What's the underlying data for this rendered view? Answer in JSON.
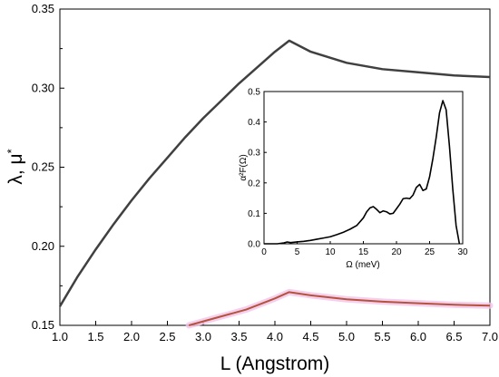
{
  "chart_data": [
    {
      "type": "line",
      "xlabel": "L  (Angstrom)",
      "ylabel_main": "λ, μ",
      "ylabel_sup": "*",
      "xlim": [
        1.0,
        7.0
      ],
      "ylim": [
        0.15,
        0.35
      ],
      "xticks": [
        "1.0",
        "1.5",
        "2.0",
        "2.5",
        "3.0",
        "3.5",
        "4.0",
        "4.5",
        "5.0",
        "5.5",
        "6.0",
        "6.5",
        "7.0"
      ],
      "yticks": [
        "0.15",
        "0.20",
        "0.25",
        "0.30",
        "0.35"
      ],
      "grid": false,
      "colors": {
        "lambda": "#404040",
        "mu": "#b5533c",
        "mu_glow": "#f2c4ea"
      },
      "series": [
        {
          "x": [
            1.0,
            1.25,
            1.5,
            1.75,
            2.0,
            2.25,
            2.5,
            2.75,
            3.0,
            3.25,
            3.5,
            3.75,
            4.0,
            4.2,
            4.5,
            5.0,
            5.5,
            6.0,
            6.5,
            7.0
          ],
          "y": [
            0.162,
            0.181,
            0.198,
            0.214,
            0.229,
            0.243,
            0.256,
            0.269,
            0.281,
            0.292,
            0.303,
            0.313,
            0.323,
            0.33,
            0.323,
            0.316,
            0.312,
            0.31,
            0.308,
            0.307
          ]
        },
        {
          "x": [
            2.8,
            3.2,
            3.6,
            4.0,
            4.2,
            4.5,
            5.0,
            5.5,
            6.0,
            6.5,
            7.0
          ],
          "y": [
            0.15,
            0.155,
            0.16,
            0.167,
            0.171,
            0.169,
            0.1665,
            0.165,
            0.164,
            0.163,
            0.1625
          ]
        }
      ]
    },
    {
      "type": "line",
      "xlabel": "Ω  (meV)",
      "ylabel": "α²F(Ω)",
      "xlim": [
        0,
        30
      ],
      "ylim": [
        0,
        0.5
      ],
      "xticks": [
        "0",
        "5",
        "10",
        "15",
        "20",
        "25",
        "30"
      ],
      "yticks": [
        "0.0",
        "0.1",
        "0.2",
        "0.3",
        "0.4",
        "0.5"
      ],
      "series": [
        {
          "x": [
            0,
            2,
            3,
            3.5,
            4,
            5,
            6,
            7,
            8,
            9,
            10,
            11,
            12,
            13,
            14,
            15,
            15.5,
            16,
            16.5,
            17,
            17.5,
            18,
            18.5,
            19,
            19.5,
            20,
            20.5,
            21,
            21.5,
            22,
            22.5,
            23,
            23.5,
            24,
            24.5,
            25,
            25.5,
            26,
            26.5,
            27,
            27.5,
            28,
            28.5,
            29,
            29.5
          ],
          "y": [
            0.0,
            0.0,
            0.003,
            0.006,
            0.004,
            0.006,
            0.008,
            0.011,
            0.015,
            0.019,
            0.023,
            0.03,
            0.038,
            0.048,
            0.06,
            0.085,
            0.105,
            0.118,
            0.122,
            0.113,
            0.102,
            0.108,
            0.105,
            0.098,
            0.1,
            0.115,
            0.13,
            0.148,
            0.15,
            0.148,
            0.16,
            0.185,
            0.195,
            0.175,
            0.18,
            0.22,
            0.28,
            0.35,
            0.43,
            0.47,
            0.44,
            0.32,
            0.18,
            0.06,
            0.0
          ]
        }
      ]
    }
  ]
}
